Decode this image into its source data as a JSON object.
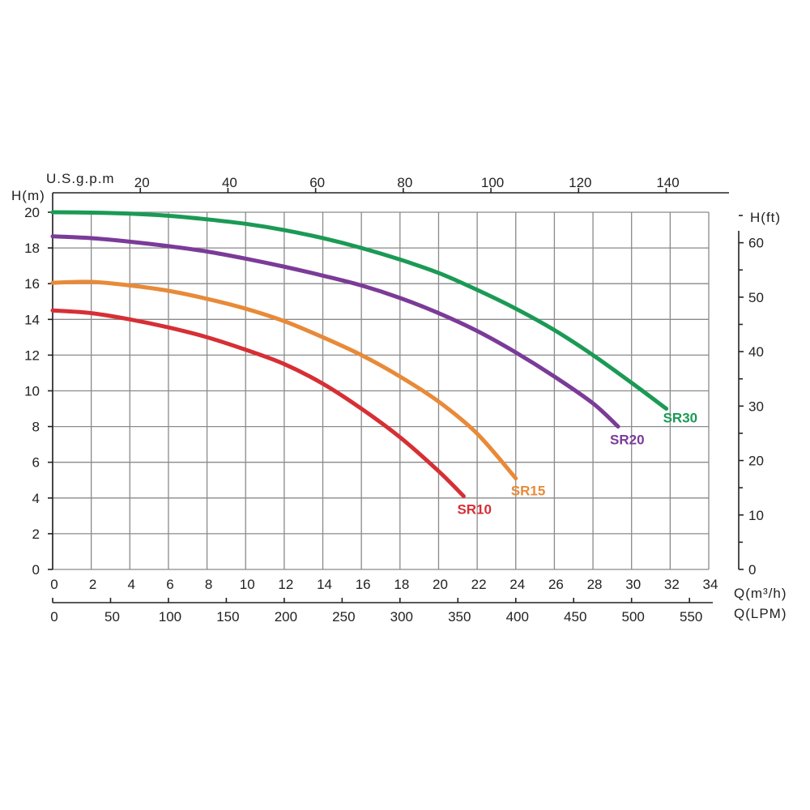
{
  "chart_data": {
    "type": "line",
    "x_axis": {
      "label_html": "Q(m³/h)",
      "range": [
        0,
        34
      ],
      "ticks": [
        0,
        2,
        4,
        6,
        8,
        10,
        12,
        14,
        16,
        18,
        20,
        22,
        24,
        26,
        28,
        30,
        32,
        34
      ]
    },
    "x2_axis": {
      "label": "Q(LPM)",
      "range": [
        0,
        566.67
      ],
      "ticks": [
        0,
        50,
        100,
        150,
        200,
        250,
        300,
        350,
        400,
        450,
        500,
        550
      ]
    },
    "x3_axis": {
      "label": "U.S.g.p.m",
      "range": [
        0,
        149.7
      ],
      "ticks": [
        20,
        40,
        60,
        80,
        100,
        120,
        140
      ]
    },
    "y_axis": {
      "label": "H(m)",
      "range": [
        0,
        20
      ],
      "ticks": [
        0,
        2,
        4,
        6,
        8,
        10,
        12,
        14,
        16,
        18,
        20
      ]
    },
    "y2_axis": {
      "label": "H(ft)",
      "range": [
        0,
        65.6
      ],
      "ticks": [
        0,
        10,
        20,
        30,
        40,
        50,
        60
      ]
    },
    "grid": true,
    "series": [
      {
        "name": "SR10",
        "color": "#d62f35",
        "points": [
          [
            0,
            14.5
          ],
          [
            2,
            14.35
          ],
          [
            4,
            14.0
          ],
          [
            6,
            13.55
          ],
          [
            8,
            13.0
          ],
          [
            10,
            12.3
          ],
          [
            12,
            11.5
          ],
          [
            14,
            10.4
          ],
          [
            16,
            9.0
          ],
          [
            18,
            7.4
          ],
          [
            20,
            5.5
          ],
          [
            21.3,
            4.1
          ]
        ]
      },
      {
        "name": "SR15",
        "color": "#e88a38",
        "points": [
          [
            0,
            16.05
          ],
          [
            2,
            16.1
          ],
          [
            4,
            15.9
          ],
          [
            6,
            15.6
          ],
          [
            8,
            15.15
          ],
          [
            10,
            14.6
          ],
          [
            12,
            13.9
          ],
          [
            14,
            13.0
          ],
          [
            16,
            12.0
          ],
          [
            18,
            10.8
          ],
          [
            20,
            9.4
          ],
          [
            22,
            7.6
          ],
          [
            24,
            5.1
          ]
        ]
      },
      {
        "name": "SR20",
        "color": "#7b3b98",
        "points": [
          [
            0,
            18.65
          ],
          [
            2,
            18.55
          ],
          [
            4,
            18.35
          ],
          [
            6,
            18.1
          ],
          [
            8,
            17.8
          ],
          [
            10,
            17.4
          ],
          [
            12,
            16.95
          ],
          [
            14,
            16.45
          ],
          [
            16,
            15.9
          ],
          [
            18,
            15.2
          ],
          [
            20,
            14.35
          ],
          [
            22,
            13.35
          ],
          [
            24,
            12.15
          ],
          [
            26,
            10.8
          ],
          [
            28,
            9.3
          ],
          [
            29.3,
            8.0
          ]
        ]
      },
      {
        "name": "SR30",
        "color": "#1b9a55",
        "points": [
          [
            0,
            20.0
          ],
          [
            2,
            19.98
          ],
          [
            4,
            19.92
          ],
          [
            6,
            19.8
          ],
          [
            8,
            19.6
          ],
          [
            10,
            19.35
          ],
          [
            12,
            19.0
          ],
          [
            14,
            18.55
          ],
          [
            16,
            18.0
          ],
          [
            18,
            17.35
          ],
          [
            20,
            16.6
          ],
          [
            22,
            15.65
          ],
          [
            24,
            14.6
          ],
          [
            26,
            13.4
          ],
          [
            28,
            12.0
          ],
          [
            30,
            10.45
          ],
          [
            31.8,
            9.0
          ]
        ]
      }
    ]
  }
}
